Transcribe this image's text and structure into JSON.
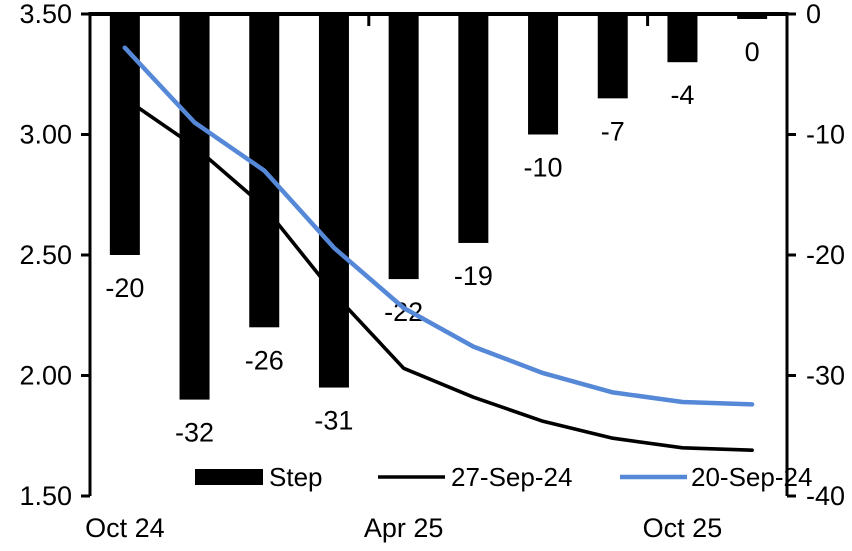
{
  "chart_data": {
    "type": "combo-bar-line",
    "title": "",
    "left_axis": {
      "ticks": [
        "3.50",
        "3.00",
        "2.50",
        "2.00",
        "1.50"
      ],
      "max": 3.5,
      "min": 1.5
    },
    "right_axis": {
      "ticks": [
        "0",
        "-10",
        "-20",
        "-30",
        "-40"
      ],
      "max": 0,
      "min": -40
    },
    "x_axis": {
      "labels": [
        {
          "text": "Oct 24",
          "slot": 0
        },
        {
          "text": "Apr 25",
          "slot": 4
        },
        {
          "text": "Oct 25",
          "slot": 8
        }
      ],
      "num_slots": 10,
      "boundary_tick_slots": [
        4,
        8
      ]
    },
    "bars": {
      "name": "Step",
      "color": "#000000",
      "axis": "right",
      "values": [
        -20,
        -32,
        -26,
        -31,
        -22,
        -19,
        -10,
        -7,
        -4,
        0
      ],
      "labels": [
        "-20",
        "-32",
        "-26",
        "-31",
        "-22",
        "-19",
        "-10",
        "-7",
        "-4",
        "0"
      ]
    },
    "series": [
      {
        "name": "27-Sep-24",
        "color": "#000000",
        "width": 3.6,
        "axis": "left",
        "values": [
          3.15,
          2.95,
          2.7,
          2.34,
          2.03,
          1.91,
          1.81,
          1.74,
          1.7,
          1.69
        ]
      },
      {
        "name": "20-Sep-24",
        "color": "#5688D8",
        "width": 4.5,
        "axis": "left",
        "values": [
          3.36,
          3.05,
          2.85,
          2.53,
          2.28,
          2.12,
          2.01,
          1.93,
          1.89,
          1.88
        ]
      }
    ],
    "legend": {
      "items": [
        {
          "label": "Step",
          "swatch": "bar"
        },
        {
          "label": "27-Sep-24",
          "swatch": "line"
        },
        {
          "label": "20-Sep-24",
          "swatch": "line"
        }
      ]
    }
  }
}
